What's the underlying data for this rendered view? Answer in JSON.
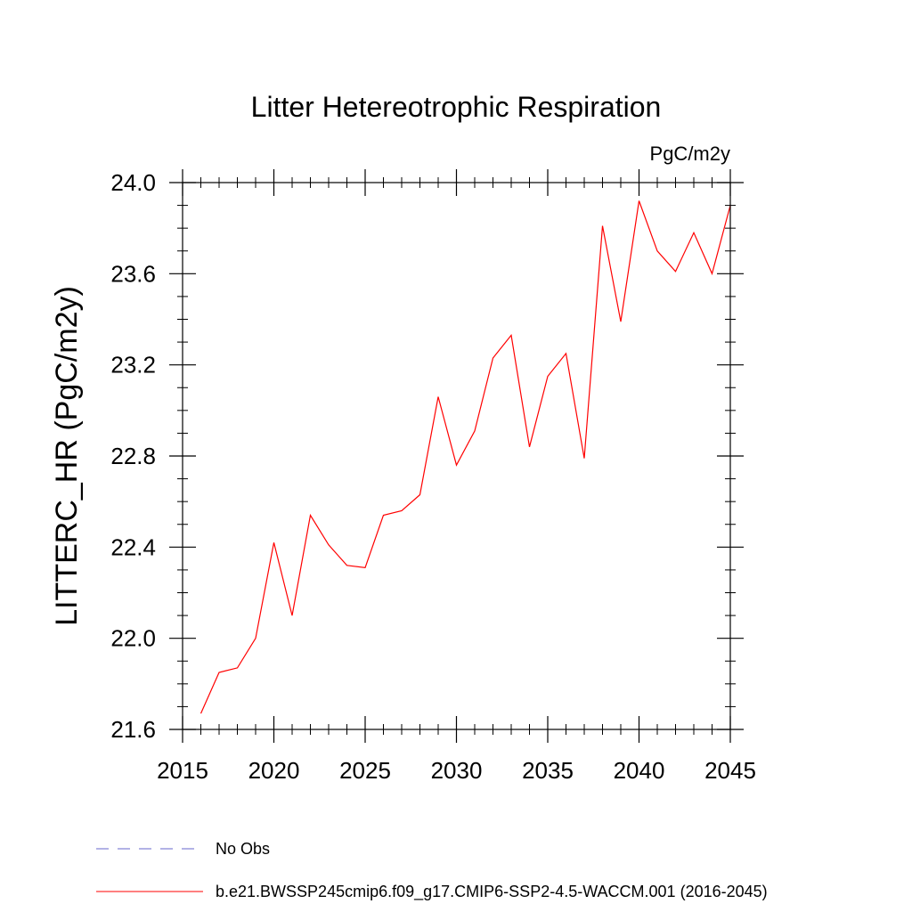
{
  "chart_data": {
    "type": "line",
    "title": "Litter Hetereotrophic Respiration",
    "units_label": "PgC/m2y",
    "ylabel": "LITTERC_HR  (PgC/m2y)",
    "xlabel": "",
    "xlim": [
      2015,
      2045
    ],
    "ylim": [
      21.6,
      24.0
    ],
    "x_ticks": [
      "2015",
      "2020",
      "2025",
      "2030",
      "2035",
      "2040",
      "2045"
    ],
    "y_ticks": [
      "21.6",
      "22.0",
      "22.4",
      "22.8",
      "23.2",
      "23.6",
      "24.0"
    ],
    "x_tick_values": [
      2015,
      2020,
      2025,
      2030,
      2035,
      2040,
      2045
    ],
    "y_tick_values": [
      21.6,
      22.0,
      22.4,
      22.8,
      23.2,
      23.6,
      24.0
    ],
    "x_minor_step": 1,
    "y_minor_step": 0.1,
    "grid": false,
    "legend_position": "bottom-left",
    "series": [
      {
        "name": "b.e21.BWSSP245cmip6.f09_g17.CMIP6-SSP2-4.5-WACCM.001 (2016-2045)",
        "color": "#ff0000",
        "x": [
          2016,
          2017,
          2018,
          2019,
          2020,
          2021,
          2022,
          2023,
          2024,
          2025,
          2026,
          2027,
          2028,
          2029,
          2030,
          2031,
          2032,
          2033,
          2034,
          2035,
          2036,
          2037,
          2038,
          2039,
          2040,
          2041,
          2042,
          2043,
          2044,
          2045
        ],
        "y": [
          21.67,
          21.85,
          21.87,
          22.0,
          22.42,
          22.1,
          22.54,
          22.41,
          22.32,
          22.31,
          22.54,
          22.56,
          22.63,
          23.06,
          22.76,
          22.91,
          23.23,
          23.33,
          22.84,
          23.15,
          23.25,
          22.79,
          23.81,
          23.39,
          23.92,
          23.7,
          23.61,
          23.78,
          23.6,
          23.9
        ]
      }
    ],
    "legend": [
      {
        "label": "No Obs",
        "color": "#6666cc",
        "style": "dashed"
      },
      {
        "label": "b.e21.BWSSP245cmip6.f09_g17.CMIP6-SSP2-4.5-WACCM.001 (2016-2045)",
        "color": "#ff0000",
        "style": "solid"
      }
    ]
  }
}
